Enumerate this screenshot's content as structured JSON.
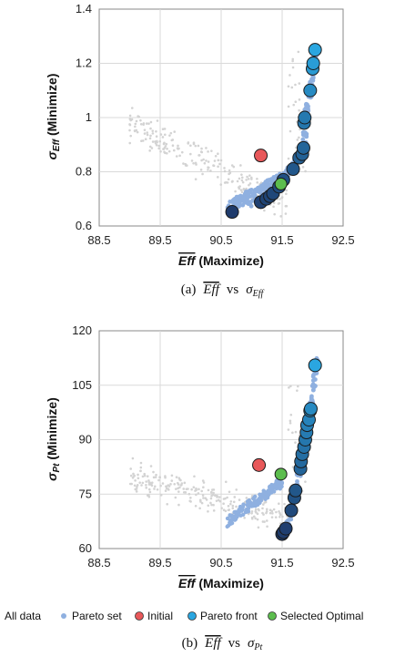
{
  "chart_data": [
    {
      "type": "scatter",
      "panel_label": "(a)",
      "caption_x": "Eff",
      "caption_vs": "vs",
      "caption_y": "σ",
      "caption_y_sub": "Eff",
      "xlabel_sym": "Eff",
      "xlabel_text": " (Maximize)",
      "ylabel_sym": "σ",
      "ylabel_sub": "Eff",
      "ylabel_text": " (Minimize)",
      "xlim": [
        88.5,
        92.5
      ],
      "ylim": [
        0.6,
        1.4
      ],
      "xticks": [
        "88.5",
        "89.5",
        "90.5",
        "91.5",
        "92.5"
      ],
      "yticks": [
        "0.6",
        "0.8",
        "1",
        "1.2",
        "1.4"
      ],
      "initial": [
        [
          91.15,
          0.86
        ]
      ],
      "selected": [
        [
          91.48,
          0.755
        ]
      ],
      "pareto_front": [
        [
          90.68,
          0.652
        ],
        [
          91.15,
          0.688
        ],
        [
          91.24,
          0.7
        ],
        [
          91.3,
          0.71
        ],
        [
          91.35,
          0.72
        ],
        [
          91.45,
          0.745
        ],
        [
          91.52,
          0.77
        ],
        [
          91.68,
          0.81
        ],
        [
          91.78,
          0.852
        ],
        [
          91.83,
          0.865
        ],
        [
          91.85,
          0.888
        ],
        [
          91.86,
          0.98
        ],
        [
          91.87,
          1.0
        ],
        [
          91.96,
          1.1
        ],
        [
          92.0,
          1.18
        ],
        [
          92.01,
          1.2
        ],
        [
          92.04,
          1.25
        ]
      ]
    },
    {
      "type": "scatter",
      "panel_label": "(b)",
      "caption_x": "Eff",
      "caption_vs": "vs",
      "caption_y": "σ",
      "caption_y_sub": "Pt",
      "xlabel_sym": "Eff",
      "xlabel_text": " (Maximize)",
      "ylabel_sym": "σ",
      "ylabel_sub": "Pt",
      "ylabel_text": " (Minimize)",
      "xlim": [
        88.5,
        92.5
      ],
      "ylim": [
        60,
        120
      ],
      "xticks": [
        "88.5",
        "89.5",
        "90.5",
        "91.5",
        "92.5"
      ],
      "yticks": [
        "60",
        "75",
        "90",
        "105",
        "120"
      ],
      "initial": [
        [
          91.12,
          83
        ]
      ],
      "selected": [
        [
          91.48,
          80.5
        ]
      ],
      "pareto_front": [
        [
          91.5,
          64
        ],
        [
          91.52,
          64.5
        ],
        [
          91.56,
          65.5
        ],
        [
          91.65,
          70.5
        ],
        [
          91.7,
          74
        ],
        [
          91.72,
          76
        ],
        [
          91.8,
          82
        ],
        [
          91.81,
          84
        ],
        [
          91.83,
          86
        ],
        [
          91.86,
          88
        ],
        [
          91.88,
          90
        ],
        [
          91.9,
          92
        ],
        [
          91.91,
          94
        ],
        [
          91.94,
          95.5
        ],
        [
          91.96,
          98
        ],
        [
          91.97,
          98.5
        ],
        [
          92.04,
          110.5
        ]
      ]
    }
  ],
  "legend": {
    "all_data": "All data",
    "pareto_set": "Pareto set",
    "initial": "Initial",
    "pareto_front": "Pareto front",
    "selected": "Selected Optimal"
  },
  "colors": {
    "all_data": "#d3d3d3",
    "pareto_set": "#8fb0e0",
    "initial": "#e8585a",
    "selected": "#5cbd4e",
    "front_dark": "#1f3b6c",
    "front_light": "#2aa6e0"
  }
}
